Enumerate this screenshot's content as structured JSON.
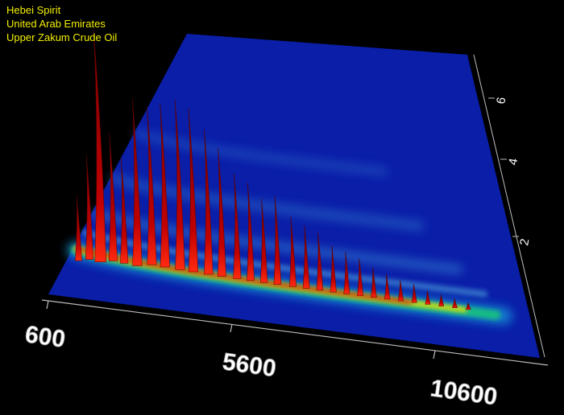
{
  "caption": {
    "line1": "Hebei Spirit",
    "line2": "United Arab Emirates",
    "line3": "Upper Zakum Crude Oil"
  },
  "colors": {
    "caption": "#f2f000",
    "plane": "#0a1ea8",
    "band_high": "#d40000",
    "band_mid": "#f0e000",
    "band_low": "#18c080",
    "peaks": "#c40000"
  },
  "chart_data": {
    "type": "surface",
    "title": "",
    "xlabel": "",
    "ylabel": "",
    "x_ticks": [
      600,
      5600,
      10600
    ],
    "y_ticks": [
      2,
      4,
      6
    ],
    "xlim": [
      600,
      12600
    ],
    "ylim": [
      0,
      7.5
    ],
    "series": [
      {
        "peaks": [
          {
            "x": 900,
            "y": 0.7,
            "h": 0.28
          },
          {
            "x": 1150,
            "y": 0.8,
            "h": 0.45
          },
          {
            "x": 1450,
            "y": 0.8,
            "h": 1.0
          },
          {
            "x": 1750,
            "y": 0.9,
            "h": 0.55
          },
          {
            "x": 2050,
            "y": 0.9,
            "h": 0.45
          },
          {
            "x": 2400,
            "y": 0.9,
            "h": 0.72
          },
          {
            "x": 2750,
            "y": 1.0,
            "h": 0.68
          },
          {
            "x": 3100,
            "y": 1.0,
            "h": 0.7
          },
          {
            "x": 3500,
            "y": 1.0,
            "h": 0.73
          },
          {
            "x": 3850,
            "y": 1.0,
            "h": 0.7
          },
          {
            "x": 4250,
            "y": 1.0,
            "h": 0.62
          },
          {
            "x": 4600,
            "y": 1.0,
            "h": 0.55
          },
          {
            "x": 5000,
            "y": 1.0,
            "h": 0.45
          },
          {
            "x": 5350,
            "y": 1.0,
            "h": 0.42
          },
          {
            "x": 5700,
            "y": 1.0,
            "h": 0.36
          },
          {
            "x": 6050,
            "y": 1.0,
            "h": 0.38
          },
          {
            "x": 6450,
            "y": 1.0,
            "h": 0.3
          },
          {
            "x": 6800,
            "y": 1.0,
            "h": 0.27
          },
          {
            "x": 7150,
            "y": 1.0,
            "h": 0.25
          },
          {
            "x": 7500,
            "y": 1.0,
            "h": 0.2
          },
          {
            "x": 7850,
            "y": 1.0,
            "h": 0.18
          },
          {
            "x": 8200,
            "y": 1.0,
            "h": 0.16
          },
          {
            "x": 8550,
            "y": 1.0,
            "h": 0.13
          },
          {
            "x": 8900,
            "y": 1.0,
            "h": 0.11
          },
          {
            "x": 9250,
            "y": 1.0,
            "h": 0.09
          },
          {
            "x": 9600,
            "y": 1.0,
            "h": 0.08
          },
          {
            "x": 9950,
            "y": 1.0,
            "h": 0.06
          },
          {
            "x": 10300,
            "y": 1.0,
            "h": 0.05
          },
          {
            "x": 10650,
            "y": 1.0,
            "h": 0.04
          },
          {
            "x": 11000,
            "y": 1.0,
            "h": 0.03
          }
        ]
      }
    ],
    "grid": false,
    "legend": "none"
  }
}
